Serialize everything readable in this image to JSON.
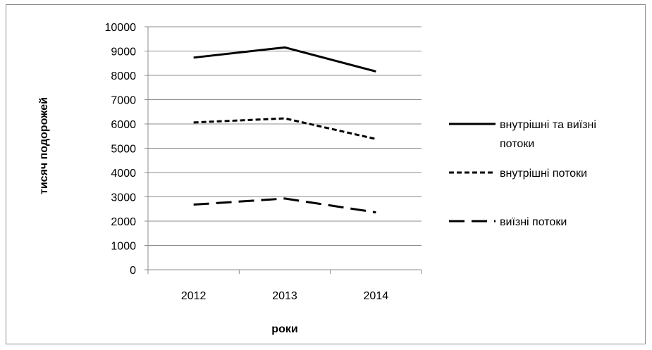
{
  "chart_data": {
    "type": "line",
    "categories": [
      "2012",
      "2013",
      "2014"
    ],
    "series": [
      {
        "name": "внутрішні та виїзні потоки",
        "values": [
          8730,
          9150,
          8160
        ],
        "dash": "solid"
      },
      {
        "name": "внутрішні потоки",
        "values": [
          6060,
          6230,
          5380
        ],
        "dash": "short-dash"
      },
      {
        "name": "виїзні потоки",
        "values": [
          2680,
          2930,
          2360
        ],
        "dash": "long-dash"
      }
    ],
    "title": "",
    "xlabel": "роки",
    "ylabel": "тисяч подорожей",
    "ylim": [
      0,
      10000
    ],
    "yticks": [
      "0",
      "1000",
      "2000",
      "3000",
      "4000",
      "5000",
      "6000",
      "7000",
      "8000",
      "9000",
      "10000"
    ],
    "grid": true,
    "legend": "right",
    "colors": {
      "line": "#000000",
      "grid": "#8c8c8c",
      "axis": "#8c8c8c",
      "frame": "#8c8c8c"
    },
    "legend_labels": [
      [
        "внутрішні та виїзні",
        "потоки"
      ],
      [
        "внутрішні потоки"
      ],
      [
        "виїзні потоки"
      ]
    ]
  }
}
